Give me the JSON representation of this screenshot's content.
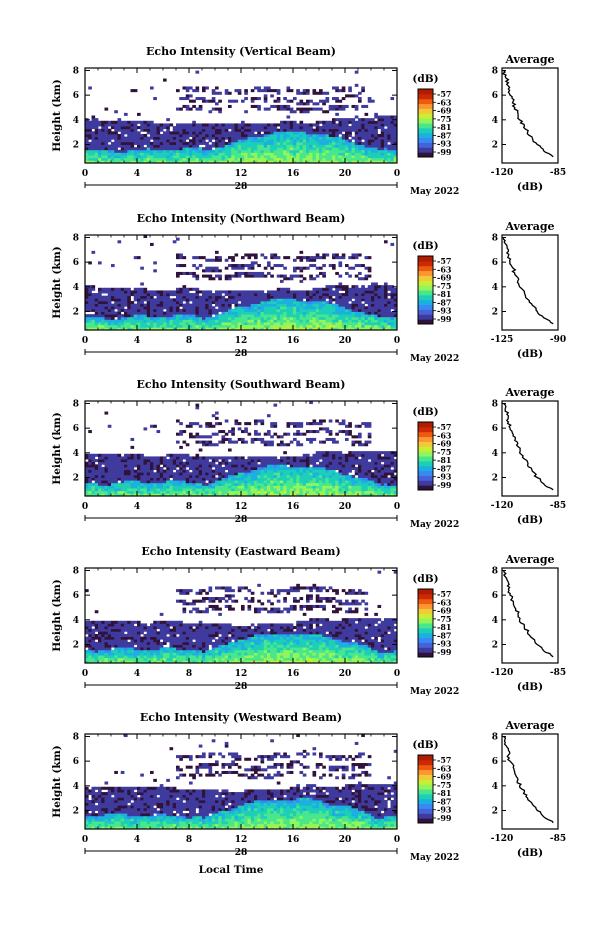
{
  "colors": {
    "colormap": [
      "#30123b",
      "#3f3a9e",
      "#4662d7",
      "#3888f5",
      "#1bb0e0",
      "#1ecfb8",
      "#48e68d",
      "#93f55a",
      "#c9ef34",
      "#f2c93a",
      "#fb9630",
      "#ef5a11",
      "#cb2a04",
      "#b01c02"
    ],
    "axis": "#000000",
    "profile_line": "#000000"
  },
  "chart_data": [
    {
      "type": "heatmap",
      "title": "Echo Intensity (Vertical Beam)",
      "ylabel": "Height (km)",
      "xlabel": "",
      "x_ticks": [
        "0",
        "4",
        "8",
        "12",
        "16",
        "20",
        "0"
      ],
      "x_range": [
        0,
        24
      ],
      "y_ticks": [
        "2",
        "4",
        "6",
        "8"
      ],
      "y_range": [
        0.5,
        8.2
      ],
      "date_day": "28",
      "date_label": "May 2022",
      "colorbar": {
        "label": "(dB)",
        "ticks": [
          "-57",
          "-63",
          "-69",
          "-75",
          "-81",
          "-87",
          "-93",
          "-99"
        ]
      },
      "average_profile": {
        "title": "Average",
        "xlabel": "(dB)",
        "x_ticks": [
          "-120",
          "-85"
        ],
        "x_range": [
          -120,
          -85
        ],
        "y_ticks": [
          "2",
          "4",
          "6",
          "8"
        ],
        "y_range": [
          0.5,
          8.2
        ],
        "heights": [
          1.0,
          1.5,
          2.0,
          2.5,
          3.0,
          3.5,
          4.0,
          4.5,
          5.0,
          5.5,
          6.0,
          6.5,
          7.0,
          7.5,
          8.0
        ],
        "values": [
          -88,
          -94,
          -98,
          -101,
          -104,
          -106,
          -109,
          -110,
          -112,
          -113,
          -115,
          -116,
          -116,
          -118,
          -119
        ]
      }
    },
    {
      "type": "heatmap",
      "title": "Echo Intensity (Northward Beam)",
      "ylabel": "Height (km)",
      "xlabel": "",
      "x_ticks": [
        "0",
        "4",
        "8",
        "12",
        "16",
        "20",
        "0"
      ],
      "x_range": [
        0,
        24
      ],
      "y_ticks": [
        "2",
        "4",
        "6",
        "8"
      ],
      "y_range": [
        0.5,
        8.2
      ],
      "date_day": "28",
      "date_label": "May 2022",
      "colorbar": {
        "label": "(dB)",
        "ticks": [
          "-57",
          "-63",
          "-69",
          "-75",
          "-81",
          "-87",
          "-93",
          "-99"
        ]
      },
      "average_profile": {
        "title": "Average",
        "xlabel": "(dB)",
        "x_ticks": [
          "-125",
          "-90"
        ],
        "x_range": [
          -125,
          -90
        ],
        "y_ticks": [
          "2",
          "4",
          "6",
          "8"
        ],
        "y_range": [
          0.5,
          8.2
        ],
        "heights": [
          1.0,
          1.5,
          2.0,
          2.5,
          3.0,
          3.5,
          4.0,
          4.5,
          5.0,
          5.5,
          6.0,
          6.5,
          7.0,
          7.5,
          8.0
        ],
        "values": [
          -93,
          -99,
          -103,
          -106,
          -109,
          -111,
          -114,
          -115,
          -117,
          -118,
          -120,
          -121,
          -121,
          -123,
          -124
        ]
      }
    },
    {
      "type": "heatmap",
      "title": "Echo Intensity (Southward Beam)",
      "ylabel": "Height (km)",
      "xlabel": "",
      "x_ticks": [
        "0",
        "4",
        "8",
        "12",
        "16",
        "20",
        "0"
      ],
      "x_range": [
        0,
        24
      ],
      "y_ticks": [
        "2",
        "4",
        "6",
        "8"
      ],
      "y_range": [
        0.5,
        8.2
      ],
      "date_day": "28",
      "date_label": "May 2022",
      "colorbar": {
        "label": "(dB)",
        "ticks": [
          "-57",
          "-63",
          "-69",
          "-75",
          "-81",
          "-87",
          "-93",
          "-99"
        ]
      },
      "average_profile": {
        "title": "Average",
        "xlabel": "(dB)",
        "x_ticks": [
          "-120",
          "-85"
        ],
        "x_range": [
          -120,
          -85
        ],
        "y_ticks": [
          "2",
          "4",
          "6",
          "8"
        ],
        "y_range": [
          0.5,
          8.2
        ],
        "heights": [
          1.0,
          1.5,
          2.0,
          2.5,
          3.0,
          3.5,
          4.0,
          4.5,
          5.0,
          5.5,
          6.0,
          6.5,
          7.0,
          7.5,
          8.0
        ],
        "values": [
          -88,
          -94,
          -98,
          -101,
          -104,
          -106,
          -109,
          -110,
          -112,
          -113,
          -115,
          -116,
          -116,
          -118,
          -119
        ]
      }
    },
    {
      "type": "heatmap",
      "title": "Echo Intensity (Eastward Beam)",
      "ylabel": "Height (km)",
      "xlabel": "",
      "x_ticks": [
        "0",
        "4",
        "8",
        "12",
        "16",
        "20",
        "0"
      ],
      "x_range": [
        0,
        24
      ],
      "y_ticks": [
        "2",
        "4",
        "6",
        "8"
      ],
      "y_range": [
        0.5,
        8.2
      ],
      "date_day": "28",
      "date_label": "May 2022",
      "colorbar": {
        "label": "(dB)",
        "ticks": [
          "-57",
          "-63",
          "-69",
          "-75",
          "-81",
          "-87",
          "-93",
          "-99"
        ]
      },
      "average_profile": {
        "title": "Average",
        "xlabel": "(dB)",
        "x_ticks": [
          "-120",
          "-85"
        ],
        "x_range": [
          -120,
          -85
        ],
        "y_ticks": [
          "2",
          "4",
          "6",
          "8"
        ],
        "y_range": [
          0.5,
          8.2
        ],
        "heights": [
          1.0,
          1.5,
          2.0,
          2.5,
          3.0,
          3.5,
          4.0,
          4.5,
          5.0,
          5.5,
          6.0,
          6.5,
          7.0,
          7.5,
          8.0
        ],
        "values": [
          -88,
          -94,
          -98,
          -101,
          -104,
          -106,
          -109,
          -110,
          -112,
          -113,
          -115,
          -116,
          -116,
          -118,
          -119
        ]
      }
    },
    {
      "type": "heatmap",
      "title": "Echo Intensity (Westward Beam)",
      "ylabel": "Height (km)",
      "xlabel": "Local Time",
      "x_ticks": [
        "0",
        "4",
        "8",
        "12",
        "16",
        "20",
        "0"
      ],
      "x_range": [
        0,
        24
      ],
      "y_ticks": [
        "2",
        "4",
        "6",
        "8"
      ],
      "y_range": [
        0.5,
        8.2
      ],
      "date_day": "28",
      "date_label": "May 2022",
      "colorbar": {
        "label": "(dB)",
        "ticks": [
          "-57",
          "-63",
          "-69",
          "-75",
          "-81",
          "-87",
          "-93",
          "-99"
        ]
      },
      "average_profile": {
        "title": "Average",
        "xlabel": "(dB)",
        "x_ticks": [
          "-120",
          "-85"
        ],
        "x_range": [
          -120,
          -85
        ],
        "y_ticks": [
          "2",
          "4",
          "6",
          "8"
        ],
        "y_range": [
          0.5,
          8.2
        ],
        "heights": [
          1.0,
          1.5,
          2.0,
          2.5,
          3.0,
          3.5,
          4.0,
          4.5,
          5.0,
          5.5,
          6.0,
          6.5,
          7.0,
          7.5,
          8.0
        ],
        "values": [
          -88,
          -94,
          -98,
          -101,
          -104,
          -106,
          -109,
          -110,
          -112,
          -113,
          -115,
          -116,
          -116,
          -118,
          -119
        ]
      }
    }
  ]
}
